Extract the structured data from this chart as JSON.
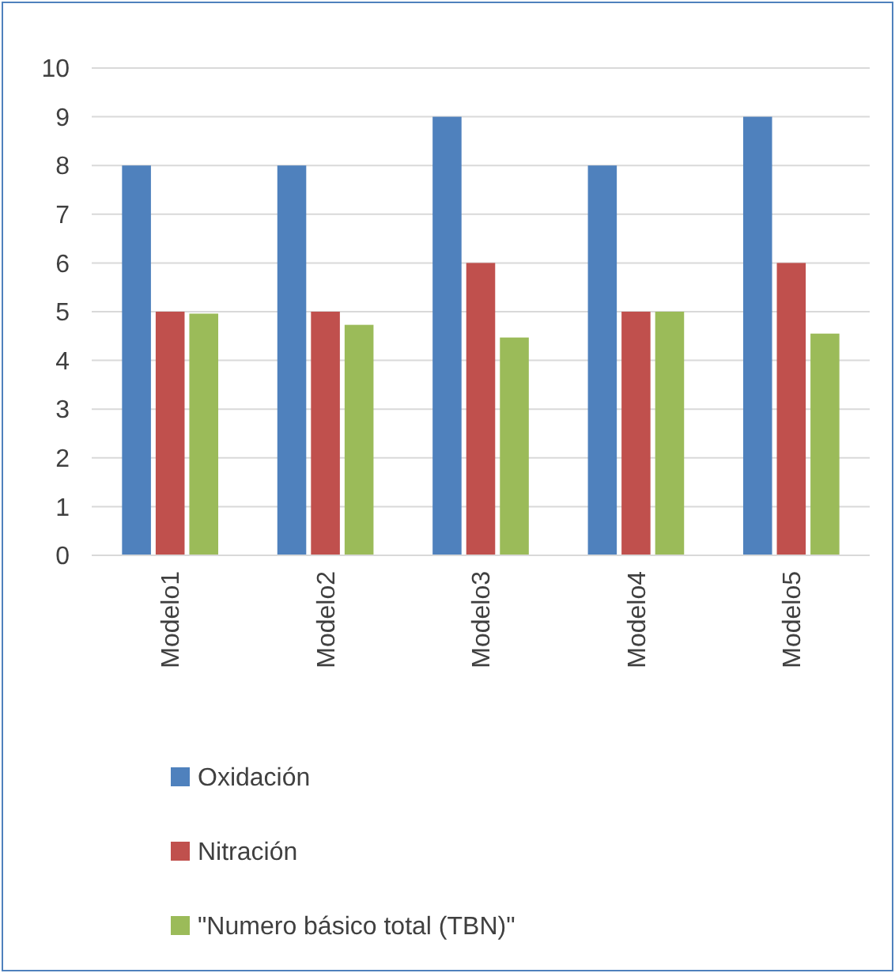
{
  "chart_data": {
    "type": "bar",
    "categories": [
      "Modelo1",
      "Modelo2",
      "Modelo3",
      "Modelo4",
      "Modelo5"
    ],
    "series": [
      {
        "name": "Oxidación",
        "color": "#4f81bd",
        "values": [
          8,
          8,
          9,
          8,
          9
        ]
      },
      {
        "name": "Nitración",
        "color": "#c0504d",
        "values": [
          5,
          5,
          6,
          5,
          6
        ]
      },
      {
        "name": "\"Numero básico total (TBN)\"",
        "color": "#9bbb59",
        "values": [
          4.96,
          4.73,
          4.47,
          5,
          4.55
        ]
      }
    ],
    "ylim": [
      0,
      10
    ],
    "yticks": [
      0,
      1,
      2,
      3,
      4,
      5,
      6,
      7,
      8,
      9,
      10
    ],
    "grid": "y",
    "legend": "bottom"
  }
}
